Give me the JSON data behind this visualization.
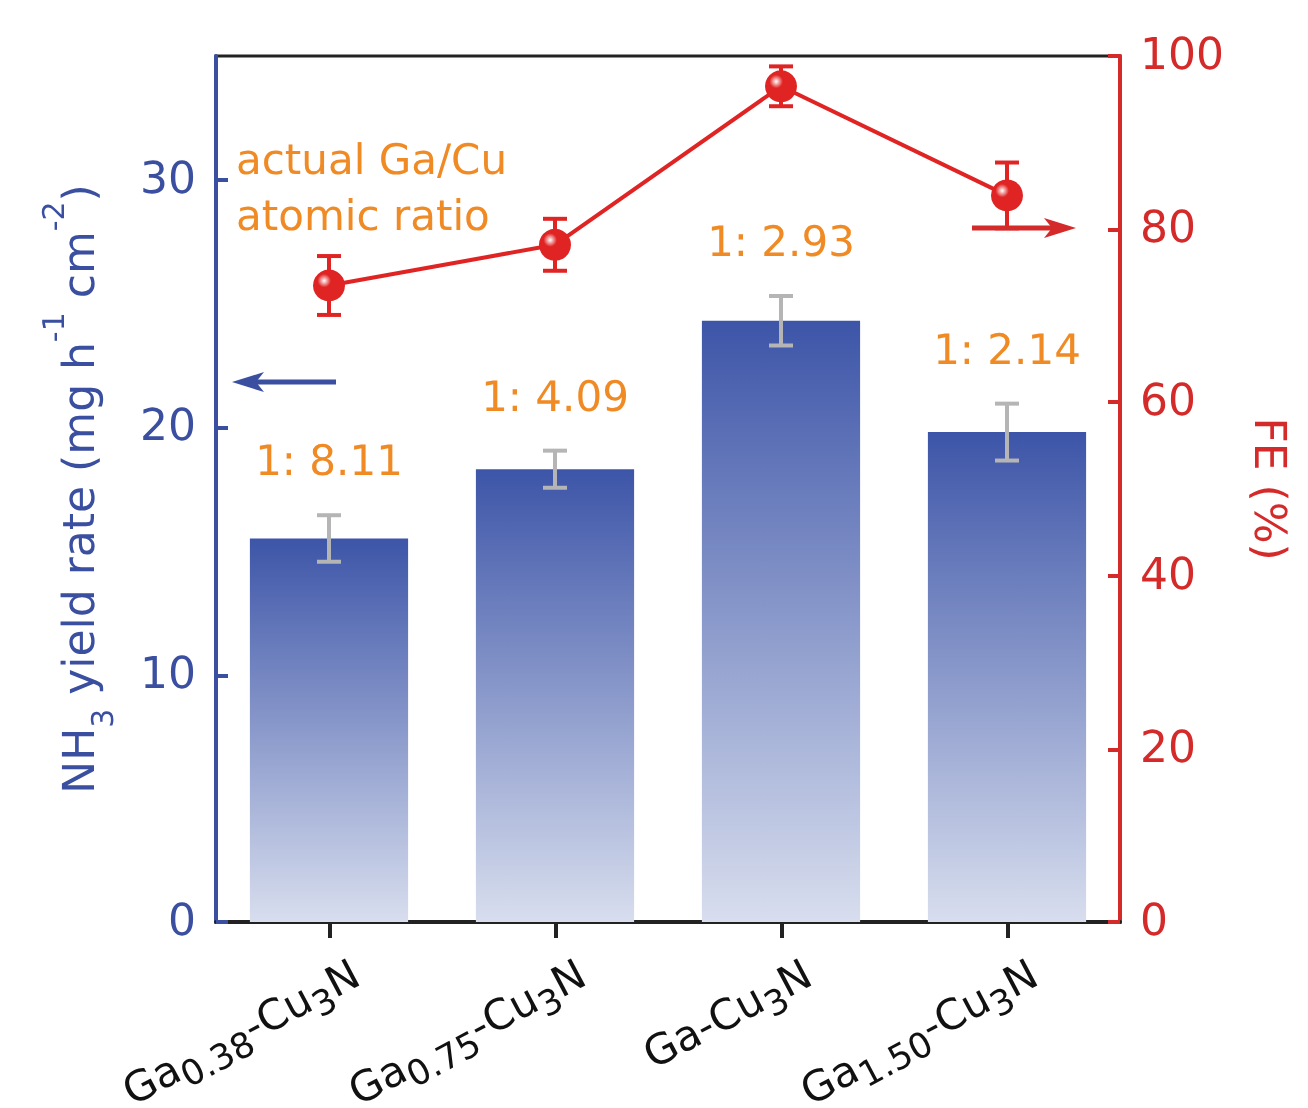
{
  "chart_data": {
    "type": "bar",
    "categories": [
      "Ga$_{0.38}$-Cu$_{3}$N",
      "Ga$_{0.75}$-Cu$_{3}$N",
      "Ga-Cu$_{3}$N",
      "Ga$_{1.50}$-Cu$_{3}$N"
    ],
    "series": [
      {
        "color": "#3d55a8",
        "values": [
          15.5,
          18.3,
          24.3,
          19.8
        ],
        "errors": [
          0.94,
          0.75,
          1.0,
          1.15
        ]
      },
      {
        "type": "line",
        "axis": "y2",
        "color": "#e02424",
        "marker": "circle",
        "line_style": "solid",
        "values": [
          73.5,
          78.2,
          96.5,
          83.9
        ],
        "errors": [
          3.4,
          3.0,
          2.3,
          3.8
        ]
      }
    ],
    "ylabel": "NH$_{3}$ yield rate (mg h$^{-1}$ cm$^{-2}$)",
    "y2label": "FE (%)",
    "ylim": [
      0,
      35
    ],
    "yticks": [
      0,
      10,
      20,
      30
    ],
    "y2lim": [
      0,
      100
    ],
    "y2ticks": [
      0,
      20,
      40,
      60,
      80,
      100
    ],
    "annotations": [
      "actual Ga/Cu atomic ratio",
      "1: 8.11",
      "1: 4.09",
      "1: 2.93",
      "1: 2.14"
    ],
    "grid": false
  }
}
